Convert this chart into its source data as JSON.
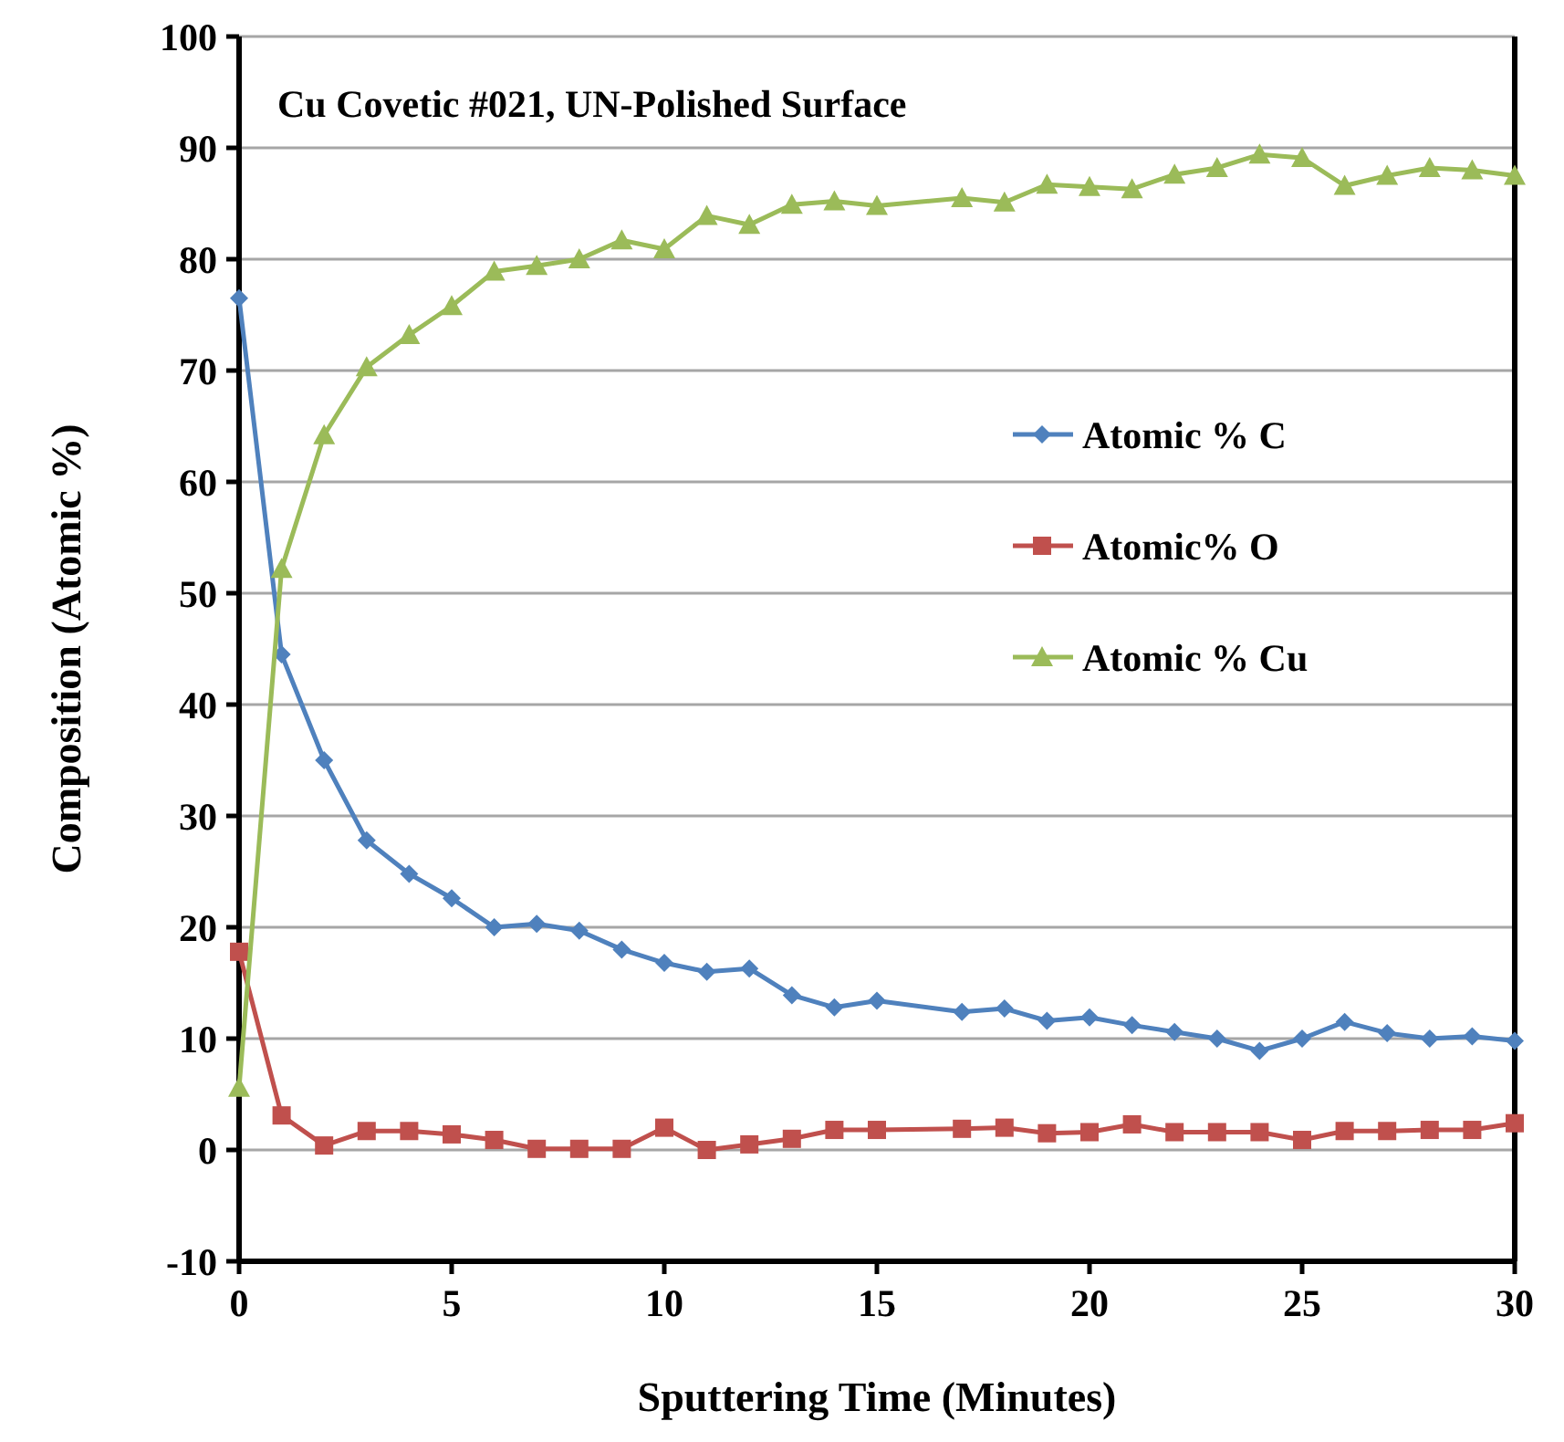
{
  "chart_data": {
    "type": "line",
    "title": "Cu Covetic #021, UN-Polished Surface",
    "xlabel": "Sputtering Time (Minutes)",
    "ylabel": "Composition (Atomic %)",
    "x": [
      0,
      1,
      2,
      3,
      4,
      5,
      6,
      7,
      8,
      9,
      10,
      11,
      12,
      13,
      14,
      15,
      17,
      18,
      19,
      20,
      21,
      22,
      23,
      24,
      25,
      26,
      27,
      28,
      29,
      30
    ],
    "series": [
      {
        "name": "Atomic % C",
        "color": "#4f81bd",
        "marker": "diamond",
        "values": [
          76.5,
          44.5,
          35,
          27.8,
          24.8,
          22.6,
          20,
          20.3,
          19.7,
          18,
          16.8,
          16,
          16.3,
          13.9,
          12.8,
          13.4,
          12.4,
          12.7,
          11.6,
          11.9,
          11.2,
          10.6,
          10,
          8.9,
          10,
          11.5,
          10.5,
          10,
          10.2,
          9.8
        ]
      },
      {
        "name": "Atomic% O",
        "color": "#c0504d",
        "marker": "square",
        "values": [
          17.8,
          3.1,
          0.4,
          1.7,
          1.7,
          1.4,
          0.9,
          0.1,
          0.1,
          0.1,
          2,
          0,
          0.5,
          1,
          1.8,
          1.8,
          1.9,
          2,
          1.5,
          1.6,
          2.3,
          1.6,
          1.6,
          1.6,
          0.9,
          1.7,
          1.7,
          1.8,
          1.8,
          2.4
        ]
      },
      {
        "name": "Atomic % Cu",
        "color": "#9bbb59",
        "marker": "triangle",
        "values": [
          5.6,
          52.2,
          64.2,
          70.3,
          73.2,
          75.8,
          78.9,
          79.4,
          80,
          81.7,
          80.9,
          83.9,
          83.1,
          84.9,
          85.2,
          84.8,
          85.5,
          85.1,
          86.7,
          86.5,
          86.3,
          87.6,
          88.2,
          89.4,
          89.1,
          86.6,
          87.5,
          88.2,
          88,
          87.5
        ]
      }
    ],
    "xlim": [
      0,
      30
    ],
    "xticks": [
      0,
      5,
      10,
      15,
      20,
      25,
      30
    ],
    "ylim": [
      -10,
      100
    ],
    "yticks": [
      -10,
      0,
      10,
      20,
      30,
      40,
      50,
      60,
      70,
      80,
      90,
      100
    ],
    "grid": "y",
    "legend": "right",
    "line_style": "solid"
  }
}
